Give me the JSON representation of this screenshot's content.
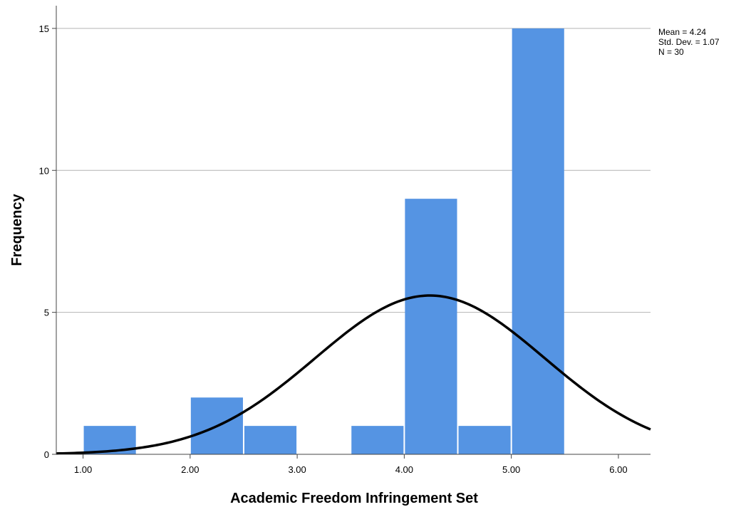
{
  "chart_data": {
    "type": "bar",
    "subtype": "histogram",
    "xlabel": "Academic Freedom Infringement Set",
    "ylabel": "Frequency",
    "xlim": [
      0.75,
      6.3
    ],
    "ylim": [
      0,
      15.8
    ],
    "x_ticks": [
      "1.00",
      "2.00",
      "3.00",
      "4.00",
      "5.00",
      "6.00"
    ],
    "x_tick_values": [
      1,
      2,
      3,
      4,
      5,
      6
    ],
    "y_ticks": [
      "0",
      "5",
      "10",
      "15"
    ],
    "y_tick_values": [
      0,
      5,
      10,
      15
    ],
    "gridlines": "horizontal",
    "bar_color": "#5594e3",
    "bins": [
      {
        "from": 1.0,
        "to": 1.5,
        "count": 1
      },
      {
        "from": 1.5,
        "to": 2.0,
        "count": 0
      },
      {
        "from": 2.0,
        "to": 2.5,
        "count": 2
      },
      {
        "from": 2.5,
        "to": 3.0,
        "count": 1
      },
      {
        "from": 3.0,
        "to": 3.5,
        "count": 0
      },
      {
        "from": 3.5,
        "to": 4.0,
        "count": 1
      },
      {
        "from": 4.0,
        "to": 4.5,
        "count": 9
      },
      {
        "from": 4.5,
        "to": 5.0,
        "count": 1
      },
      {
        "from": 5.0,
        "to": 5.5,
        "count": 15
      }
    ],
    "normal_curve": {
      "mean": 4.24,
      "sd": 1.07,
      "n": 30,
      "bin_width": 0.5,
      "color": "#000000"
    },
    "legend_placement": "top-right",
    "stats_text": [
      "Mean = 4.24",
      "Std. Dev. = 1.07",
      "N = 30"
    ]
  }
}
